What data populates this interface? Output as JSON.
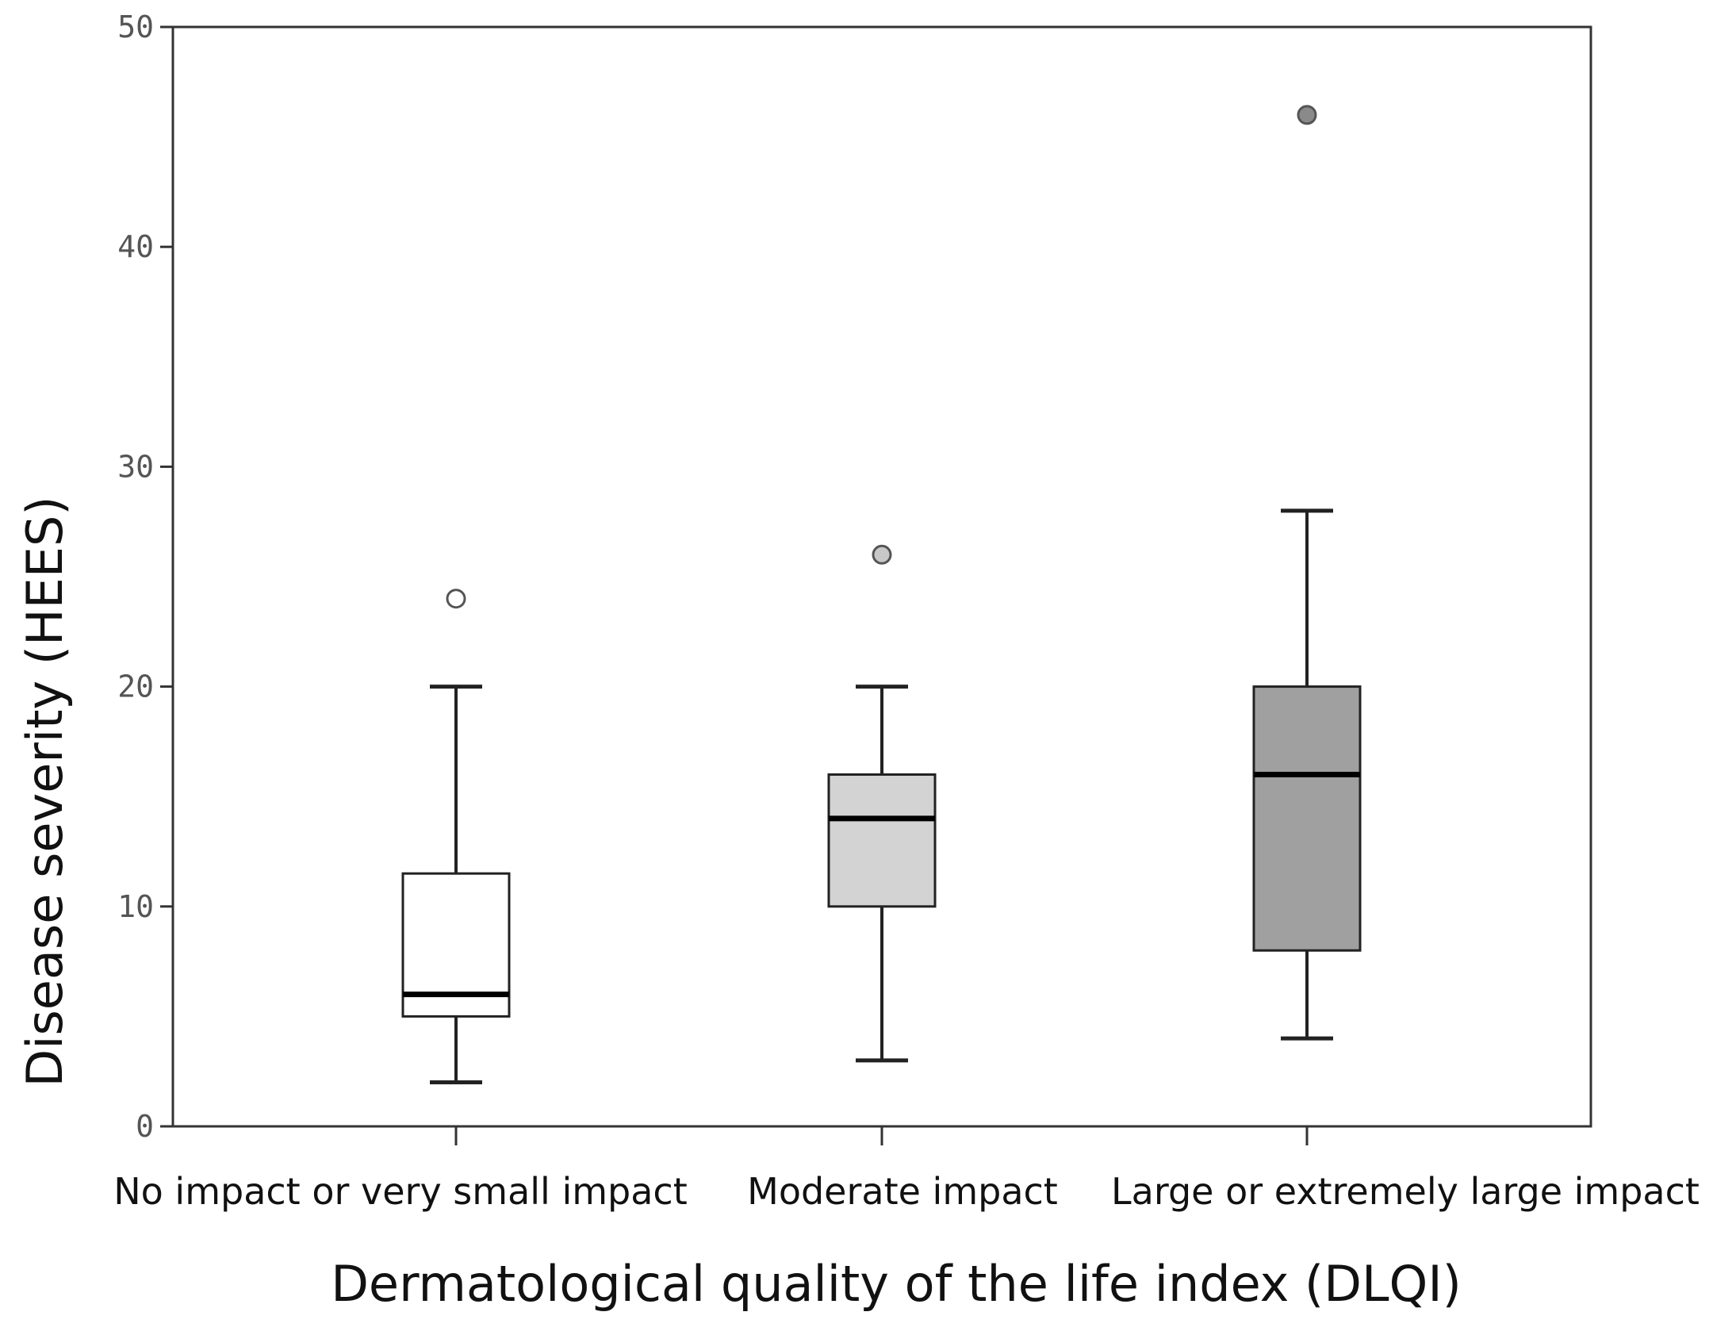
{
  "chart_data": {
    "type": "box",
    "title": "",
    "xlabel": "Dermatological quality of the life index (DLQI)",
    "ylabel": "Disease severity (HEES)",
    "ylim": [
      0,
      50
    ],
    "yticks": [
      0,
      10,
      20,
      30,
      40,
      50
    ],
    "categories": [
      "No impact or very small impact",
      "Moderate impact",
      "Large or extremely large impact"
    ],
    "boxes": [
      {
        "category": "No impact or very small impact",
        "whisker_low": 2,
        "q1": 5,
        "median": 6,
        "q3": 11.5,
        "whisker_high": 20,
        "outliers": [
          24
        ],
        "fill": "#ffffff",
        "outlier_fill": "#ffffff"
      },
      {
        "category": "Moderate impact",
        "whisker_low": 3,
        "q1": 10,
        "median": 14,
        "q3": 16,
        "whisker_high": 20,
        "outliers": [
          26
        ],
        "fill": "#d3d3d3",
        "outlier_fill": "#c8c8c8"
      },
      {
        "category": "Large or extremely large impact",
        "whisker_low": 4,
        "q1": 8,
        "median": 16,
        "q3": 20,
        "whisker_high": 28,
        "outliers": [
          46
        ],
        "fill": "#a0a0a0",
        "outlier_fill": "#8a8a8a"
      }
    ],
    "grid": false,
    "legend": "none"
  },
  "colors": {
    "axis": "#333333",
    "box_stroke": "#222222",
    "median": "#000000"
  }
}
